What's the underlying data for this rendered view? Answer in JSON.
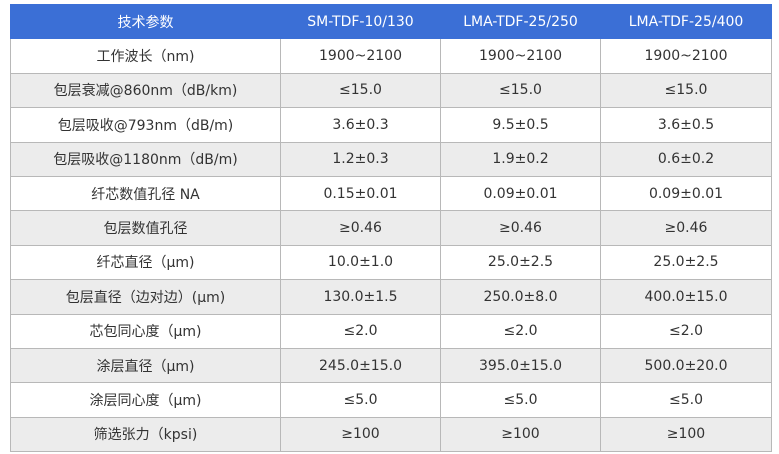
{
  "table": {
    "header": [
      "技术参数",
      "SM-TDF-10/130",
      "LMA-TDF-25/250",
      "LMA-TDF-25/400"
    ],
    "rows": [
      [
        "工作波长（nm)",
        "1900~2100",
        "1900~2100",
        "1900~2100"
      ],
      [
        "包层衰减@860nm（dB/km)",
        "≤15.0",
        "≤15.0",
        "≤15.0"
      ],
      [
        "包层吸收@793nm（dB/m)",
        "3.6±0.3",
        "9.5±0.5",
        "3.6±0.5"
      ],
      [
        "包层吸收@1180nm（dB/m)",
        "1.2±0.3",
        "1.9±0.2",
        "0.6±0.2"
      ],
      [
        "纤芯数值孔径 NA",
        "0.15±0.01",
        "0.09±0.01",
        "0.09±0.01"
      ],
      [
        "包层数值孔径",
        "≥0.46",
        "≥0.46",
        "≥0.46"
      ],
      [
        "纤芯直径（μm)",
        "10.0±1.0",
        "25.0±2.5",
        "25.0±2.5"
      ],
      [
        "包层直径（边对边）(μm)",
        "130.0±1.5",
        "250.0±8.0",
        "400.0±15.0"
      ],
      [
        "芯包同心度（μm)",
        "≤2.0",
        "≤2.0",
        "≤2.0"
      ],
      [
        "涂层直径（μm)",
        "245.0±15.0",
        "395.0±15.0",
        "500.0±20.0"
      ],
      [
        "涂层同心度（μm)",
        "≤5.0",
        "≤5.0",
        "≤5.0"
      ],
      [
        "筛选张力（kpsi)",
        "≥100",
        "≥100",
        "≥100"
      ]
    ]
  }
}
